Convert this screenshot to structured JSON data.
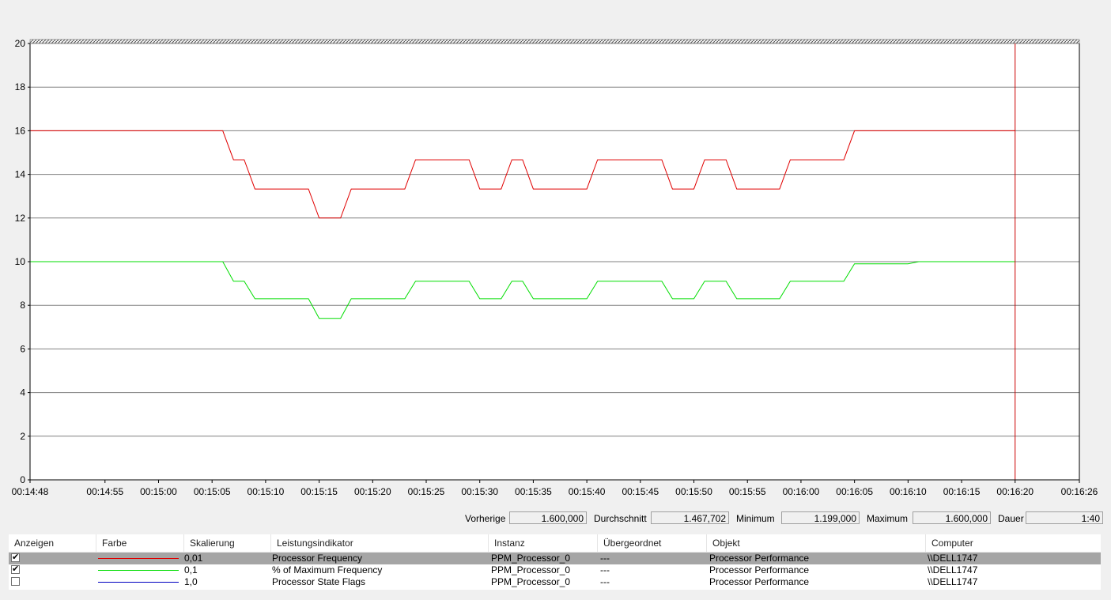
{
  "chart_data": {
    "type": "line",
    "ylim": [
      0,
      20
    ],
    "y_ticks": [
      "0",
      "2",
      "4",
      "6",
      "8",
      "10",
      "12",
      "14",
      "16",
      "18",
      "20"
    ],
    "x_ticks": [
      "00:14:48",
      "00:14:55",
      "00:15:00",
      "00:15:05",
      "00:15:10",
      "00:15:15",
      "00:15:20",
      "00:15:25",
      "00:15:30",
      "00:15:35",
      "00:15:40",
      "00:15:45",
      "00:15:50",
      "00:15:55",
      "00:16:00",
      "00:16:05",
      "00:16:10",
      "00:16:15",
      "00:16:20",
      "00:16:26"
    ],
    "grid": true,
    "cursor_time": "00:16:20",
    "series": [
      {
        "name": "Processor Frequency",
        "color": "#e00000",
        "points": [
          [
            "00:14:48",
            16
          ],
          [
            "00:15:06",
            16
          ],
          [
            "00:15:07",
            14.67
          ],
          [
            "00:15:08",
            14.67
          ],
          [
            "00:15:09",
            13.33
          ],
          [
            "00:15:14",
            13.33
          ],
          [
            "00:15:15",
            12
          ],
          [
            "00:15:17",
            12
          ],
          [
            "00:15:18",
            13.33
          ],
          [
            "00:15:23",
            13.33
          ],
          [
            "00:15:24",
            14.67
          ],
          [
            "00:15:29",
            14.67
          ],
          [
            "00:15:30",
            13.33
          ],
          [
            "00:15:32",
            13.33
          ],
          [
            "00:15:33",
            14.67
          ],
          [
            "00:15:34",
            14.67
          ],
          [
            "00:15:35",
            13.33
          ],
          [
            "00:15:40",
            13.33
          ],
          [
            "00:15:41",
            14.67
          ],
          [
            "00:15:47",
            14.67
          ],
          [
            "00:15:48",
            13.33
          ],
          [
            "00:15:50",
            13.33
          ],
          [
            "00:15:51",
            14.67
          ],
          [
            "00:15:53",
            14.67
          ],
          [
            "00:15:54",
            13.33
          ],
          [
            "00:15:58",
            13.33
          ],
          [
            "00:15:59",
            14.67
          ],
          [
            "00:16:04",
            14.67
          ],
          [
            "00:16:05",
            16
          ],
          [
            "00:16:20",
            16
          ]
        ]
      },
      {
        "name": "% of Maximum Frequency",
        "color": "#00dd00",
        "points": [
          [
            "00:14:48",
            10
          ],
          [
            "00:15:06",
            10
          ],
          [
            "00:15:07",
            9.1
          ],
          [
            "00:15:08",
            9.1
          ],
          [
            "00:15:09",
            8.3
          ],
          [
            "00:15:14",
            8.3
          ],
          [
            "00:15:15",
            7.4
          ],
          [
            "00:15:17",
            7.4
          ],
          [
            "00:15:18",
            8.3
          ],
          [
            "00:15:23",
            8.3
          ],
          [
            "00:15:24",
            9.1
          ],
          [
            "00:15:29",
            9.1
          ],
          [
            "00:15:30",
            8.3
          ],
          [
            "00:15:32",
            8.3
          ],
          [
            "00:15:33",
            9.1
          ],
          [
            "00:15:34",
            9.1
          ],
          [
            "00:15:35",
            8.3
          ],
          [
            "00:15:40",
            8.3
          ],
          [
            "00:15:41",
            9.1
          ],
          [
            "00:15:47",
            9.1
          ],
          [
            "00:15:48",
            8.3
          ],
          [
            "00:15:50",
            8.3
          ],
          [
            "00:15:51",
            9.1
          ],
          [
            "00:15:53",
            9.1
          ],
          [
            "00:15:54",
            8.3
          ],
          [
            "00:15:58",
            8.3
          ],
          [
            "00:15:59",
            9.1
          ],
          [
            "00:16:04",
            9.1
          ],
          [
            "00:16:05",
            9.9
          ],
          [
            "00:16:10",
            9.9
          ],
          [
            "00:16:11",
            10
          ],
          [
            "00:16:20",
            10
          ]
        ]
      }
    ]
  },
  "stats": {
    "previous_label": "Vorherige",
    "previous_value": "1.600,000",
    "average_label": "Durchschnitt",
    "average_value": "1.467,702",
    "minimum_label": "Minimum",
    "minimum_value": "1.199,000",
    "maximum_label": "Maximum",
    "maximum_value": "1.600,000",
    "duration_label": "Dauer",
    "duration_value": "1:40"
  },
  "table": {
    "headers": [
      "Anzeigen",
      "Farbe",
      "Skalierung",
      "Leistungsindikator",
      "Instanz",
      "Übergeordnet",
      "Objekt",
      "Computer"
    ],
    "rows": [
      {
        "checked": true,
        "color": "#e00000",
        "scale": "0,01",
        "counter": "Processor Frequency",
        "instance": "PPM_Processor_0",
        "parent": "---",
        "object": "Processor Performance",
        "computer": "\\\\DELL1747",
        "selected": true
      },
      {
        "checked": true,
        "color": "#00dd00",
        "scale": "0,1",
        "counter": "% of Maximum Frequency",
        "instance": "PPM_Processor_0",
        "parent": "---",
        "object": "Processor Performance",
        "computer": "\\\\DELL1747",
        "selected": false
      },
      {
        "checked": false,
        "color": "#0000c0",
        "scale": "1,0",
        "counter": "Processor State Flags",
        "instance": "PPM_Processor_0",
        "parent": "---",
        "object": "Processor Performance",
        "computer": "\\\\DELL1747",
        "selected": false
      }
    ],
    "check_mark": "✔"
  }
}
